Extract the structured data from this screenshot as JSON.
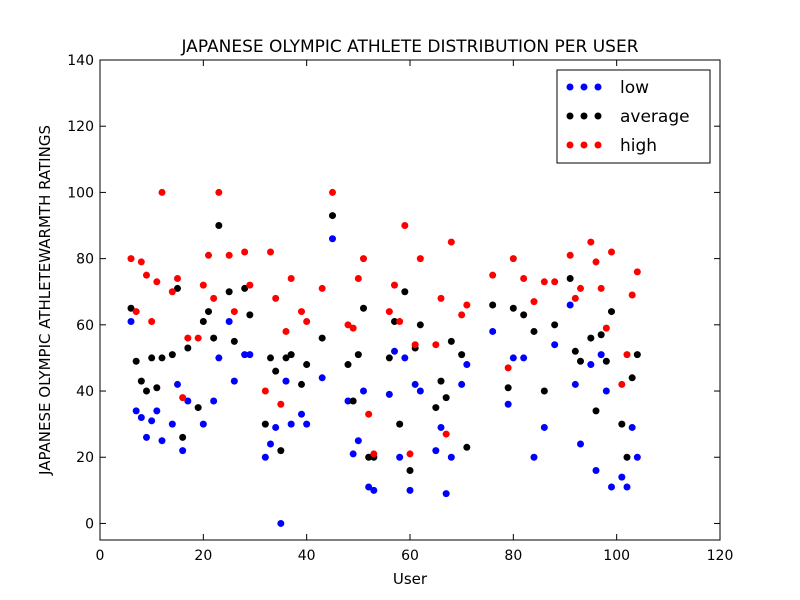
{
  "chart_data": {
    "type": "scatter",
    "title": "JAPANESE OLYMPIC ATHLETE DISTRIBUTION PER USER",
    "xlabel": "User",
    "ylabel": "JAPANESE OLYMPIC ATHLETEWARMTH RATINGS",
    "xlim": [
      0,
      120
    ],
    "ylim": [
      -5,
      140
    ],
    "xticks": [
      0,
      20,
      40,
      60,
      80,
      100,
      120
    ],
    "yticks": [
      0,
      20,
      40,
      60,
      80,
      100,
      120,
      140
    ],
    "grid": false,
    "legend_position": "top-right",
    "series": [
      {
        "name": "low",
        "color": "#0000ff",
        "points": [
          [
            6,
            61
          ],
          [
            7,
            34
          ],
          [
            8,
            32
          ],
          [
            9,
            26
          ],
          [
            10,
            31
          ],
          [
            11,
            34
          ],
          [
            12,
            25
          ],
          [
            14,
            30
          ],
          [
            15,
            42
          ],
          [
            16,
            22
          ],
          [
            17,
            37
          ],
          [
            20,
            30
          ],
          [
            22,
            37
          ],
          [
            23,
            50
          ],
          [
            25,
            61
          ],
          [
            26,
            43
          ],
          [
            28,
            51
          ],
          [
            29,
            51
          ],
          [
            32,
            20
          ],
          [
            33,
            24
          ],
          [
            34,
            29
          ],
          [
            35,
            0
          ],
          [
            36,
            43
          ],
          [
            37,
            30
          ],
          [
            39,
            33
          ],
          [
            40,
            30
          ],
          [
            43,
            44
          ],
          [
            45,
            86
          ],
          [
            48,
            37
          ],
          [
            49,
            21
          ],
          [
            50,
            25
          ],
          [
            51,
            40
          ],
          [
            52,
            11
          ],
          [
            53,
            10
          ],
          [
            56,
            39
          ],
          [
            57,
            52
          ],
          [
            58,
            20
          ],
          [
            59,
            50
          ],
          [
            60,
            10
          ],
          [
            61,
            42
          ],
          [
            62,
            40
          ],
          [
            65,
            22
          ],
          [
            66,
            29
          ],
          [
            67,
            9
          ],
          [
            68,
            20
          ],
          [
            70,
            42
          ],
          [
            71,
            48
          ],
          [
            76,
            58
          ],
          [
            79,
            36
          ],
          [
            80,
            50
          ],
          [
            82,
            50
          ],
          [
            84,
            20
          ],
          [
            86,
            29
          ],
          [
            88,
            54
          ],
          [
            91,
            66
          ],
          [
            92,
            42
          ],
          [
            93,
            24
          ],
          [
            95,
            48
          ],
          [
            96,
            16
          ],
          [
            97,
            51
          ],
          [
            98,
            40
          ],
          [
            99,
            11
          ],
          [
            101,
            14
          ],
          [
            102,
            11
          ],
          [
            103,
            29
          ],
          [
            104,
            20
          ]
        ]
      },
      {
        "name": "average",
        "color": "#000000",
        "points": [
          [
            6,
            65
          ],
          [
            7,
            49
          ],
          [
            8,
            43
          ],
          [
            9,
            40
          ],
          [
            10,
            50
          ],
          [
            11,
            41
          ],
          [
            12,
            50
          ],
          [
            14,
            51
          ],
          [
            15,
            71
          ],
          [
            16,
            26
          ],
          [
            17,
            53
          ],
          [
            19,
            35
          ],
          [
            20,
            61
          ],
          [
            21,
            64
          ],
          [
            22,
            56
          ],
          [
            23,
            90
          ],
          [
            25,
            70
          ],
          [
            26,
            55
          ],
          [
            28,
            71
          ],
          [
            29,
            63
          ],
          [
            32,
            30
          ],
          [
            33,
            50
          ],
          [
            34,
            46
          ],
          [
            35,
            22
          ],
          [
            36,
            50
          ],
          [
            37,
            51
          ],
          [
            39,
            42
          ],
          [
            40,
            48
          ],
          [
            43,
            56
          ],
          [
            45,
            93
          ],
          [
            48,
            48
          ],
          [
            49,
            37
          ],
          [
            50,
            51
          ],
          [
            51,
            65
          ],
          [
            52,
            20
          ],
          [
            53,
            20
          ],
          [
            56,
            50
          ],
          [
            57,
            61
          ],
          [
            58,
            30
          ],
          [
            59,
            70
          ],
          [
            60,
            16
          ],
          [
            61,
            53
          ],
          [
            62,
            60
          ],
          [
            65,
            35
          ],
          [
            66,
            43
          ],
          [
            67,
            38
          ],
          [
            68,
            55
          ],
          [
            70,
            51
          ],
          [
            71,
            23
          ],
          [
            76,
            66
          ],
          [
            79,
            41
          ],
          [
            80,
            65
          ],
          [
            82,
            63
          ],
          [
            84,
            58
          ],
          [
            86,
            40
          ],
          [
            88,
            60
          ],
          [
            91,
            74
          ],
          [
            92,
            52
          ],
          [
            93,
            49
          ],
          [
            95,
            56
          ],
          [
            96,
            34
          ],
          [
            97,
            57
          ],
          [
            98,
            49
          ],
          [
            99,
            64
          ],
          [
            101,
            30
          ],
          [
            102,
            20
          ],
          [
            103,
            44
          ],
          [
            104,
            51
          ]
        ]
      },
      {
        "name": "high",
        "color": "#ff0000",
        "points": [
          [
            6,
            80
          ],
          [
            7,
            64
          ],
          [
            8,
            79
          ],
          [
            9,
            75
          ],
          [
            10,
            61
          ],
          [
            11,
            73
          ],
          [
            12,
            100
          ],
          [
            14,
            70
          ],
          [
            15,
            74
          ],
          [
            16,
            38
          ],
          [
            17,
            56
          ],
          [
            19,
            56
          ],
          [
            20,
            72
          ],
          [
            21,
            81
          ],
          [
            22,
            68
          ],
          [
            23,
            100
          ],
          [
            25,
            81
          ],
          [
            26,
            64
          ],
          [
            28,
            82
          ],
          [
            29,
            72
          ],
          [
            32,
            40
          ],
          [
            33,
            82
          ],
          [
            34,
            68
          ],
          [
            35,
            36
          ],
          [
            36,
            58
          ],
          [
            37,
            74
          ],
          [
            39,
            64
          ],
          [
            40,
            61
          ],
          [
            43,
            71
          ],
          [
            45,
            100
          ],
          [
            48,
            60
          ],
          [
            49,
            59
          ],
          [
            50,
            74
          ],
          [
            51,
            80
          ],
          [
            52,
            33
          ],
          [
            53,
            21
          ],
          [
            56,
            64
          ],
          [
            57,
            72
          ],
          [
            58,
            61
          ],
          [
            59,
            90
          ],
          [
            60,
            21
          ],
          [
            61,
            54
          ],
          [
            62,
            80
          ],
          [
            65,
            54
          ],
          [
            66,
            68
          ],
          [
            67,
            27
          ],
          [
            68,
            85
          ],
          [
            70,
            63
          ],
          [
            71,
            66
          ],
          [
            76,
            75
          ],
          [
            79,
            47
          ],
          [
            80,
            80
          ],
          [
            82,
            74
          ],
          [
            84,
            67
          ],
          [
            86,
            73
          ],
          [
            88,
            73
          ],
          [
            91,
            81
          ],
          [
            92,
            68
          ],
          [
            93,
            71
          ],
          [
            95,
            85
          ],
          [
            96,
            79
          ],
          [
            97,
            71
          ],
          [
            98,
            59
          ],
          [
            99,
            82
          ],
          [
            101,
            42
          ],
          [
            102,
            51
          ],
          [
            103,
            69
          ],
          [
            104,
            76
          ]
        ]
      }
    ]
  }
}
